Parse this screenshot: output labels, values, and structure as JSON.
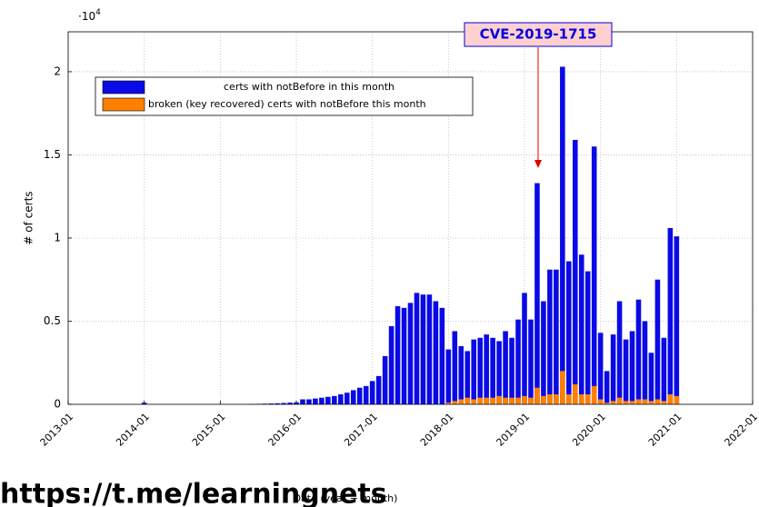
{
  "chart_data": {
    "type": "bar",
    "xlabel": "Date (year − month)",
    "ylabel": "# of certs",
    "ymultiplier": {
      "base": "·10",
      "exponent": "4"
    },
    "annotation": "CVE-2019-1715",
    "watermark": "https://t.me/learningnets",
    "xlim": [
      "2013-01",
      "2022-01"
    ],
    "xticks": [
      "2013-01",
      "2014-01",
      "2015-01",
      "2016-01",
      "2017-01",
      "2018-01",
      "2019-01",
      "2020-01",
      "2021-01",
      "2022-01"
    ],
    "ylim": [
      0,
      2.24
    ],
    "yticks": [
      0,
      0.5,
      1,
      1.5,
      2
    ],
    "grid": true,
    "legend": "upper left",
    "x": [
      "2014-01",
      "2015-06",
      "2015-07",
      "2015-08",
      "2015-09",
      "2015-10",
      "2015-11",
      "2015-12",
      "2016-01",
      "2016-02",
      "2016-03",
      "2016-04",
      "2016-05",
      "2016-06",
      "2016-07",
      "2016-08",
      "2016-09",
      "2016-10",
      "2016-11",
      "2016-12",
      "2017-01",
      "2017-02",
      "2017-03",
      "2017-04",
      "2017-05",
      "2017-06",
      "2017-07",
      "2017-08",
      "2017-09",
      "2017-10",
      "2017-11",
      "2017-12",
      "2018-01",
      "2018-02",
      "2018-03",
      "2018-04",
      "2018-05",
      "2018-06",
      "2018-07",
      "2018-08",
      "2018-09",
      "2018-10",
      "2018-11",
      "2018-12",
      "2019-01",
      "2019-02",
      "2019-03",
      "2019-04",
      "2019-05",
      "2019-06",
      "2019-07",
      "2019-08",
      "2019-09",
      "2019-10",
      "2019-11",
      "2019-12",
      "2020-01",
      "2020-02",
      "2020-03",
      "2020-04",
      "2020-05",
      "2020-06",
      "2020-07",
      "2020-08",
      "2020-09",
      "2020-10",
      "2020-11",
      "2020-12",
      "2021-01"
    ],
    "series": [
      {
        "name": "certs with notBefore in this month",
        "color": "#0a0ae6",
        "values": [
          0.01,
          0.002,
          0.003,
          0.004,
          0.005,
          0.006,
          0.008,
          0.01,
          0.012,
          0.03,
          0.03,
          0.035,
          0.04,
          0.045,
          0.05,
          0.06,
          0.07,
          0.085,
          0.1,
          0.11,
          0.14,
          0.17,
          0.29,
          0.47,
          0.59,
          0.58,
          0.61,
          0.67,
          0.66,
          0.66,
          0.62,
          0.58,
          0.33,
          0.44,
          0.35,
          0.32,
          0.39,
          0.4,
          0.42,
          0.4,
          0.38,
          0.44,
          0.4,
          0.51,
          0.67,
          0.51,
          1.33,
          0.62,
          0.81,
          0.81,
          2.03,
          0.86,
          1.59,
          0.9,
          0.8,
          1.55,
          0.43,
          0.2,
          0.42,
          0.62,
          0.39,
          0.44,
          0.63,
          0.5,
          0.31,
          0.75,
          0.4,
          1.06,
          1.01
        ]
      },
      {
        "name": "broken (key recovered) certs with notBefore this month",
        "color": "#ff8000",
        "values": [
          null,
          null,
          null,
          null,
          null,
          null,
          null,
          null,
          null,
          null,
          null,
          null,
          null,
          null,
          null,
          null,
          null,
          null,
          null,
          null,
          null,
          null,
          null,
          null,
          null,
          null,
          null,
          null,
          null,
          null,
          null,
          null,
          0.01,
          0.02,
          0.03,
          0.04,
          0.03,
          0.04,
          0.04,
          0.04,
          0.05,
          0.04,
          0.04,
          0.04,
          0.05,
          0.04,
          0.1,
          0.05,
          0.06,
          0.06,
          0.2,
          0.06,
          0.12,
          0.06,
          0.06,
          0.11,
          0.03,
          0.01,
          0.02,
          0.04,
          0.02,
          0.02,
          0.03,
          0.03,
          0.02,
          0.03,
          0.02,
          0.06,
          0.05
        ]
      }
    ]
  }
}
